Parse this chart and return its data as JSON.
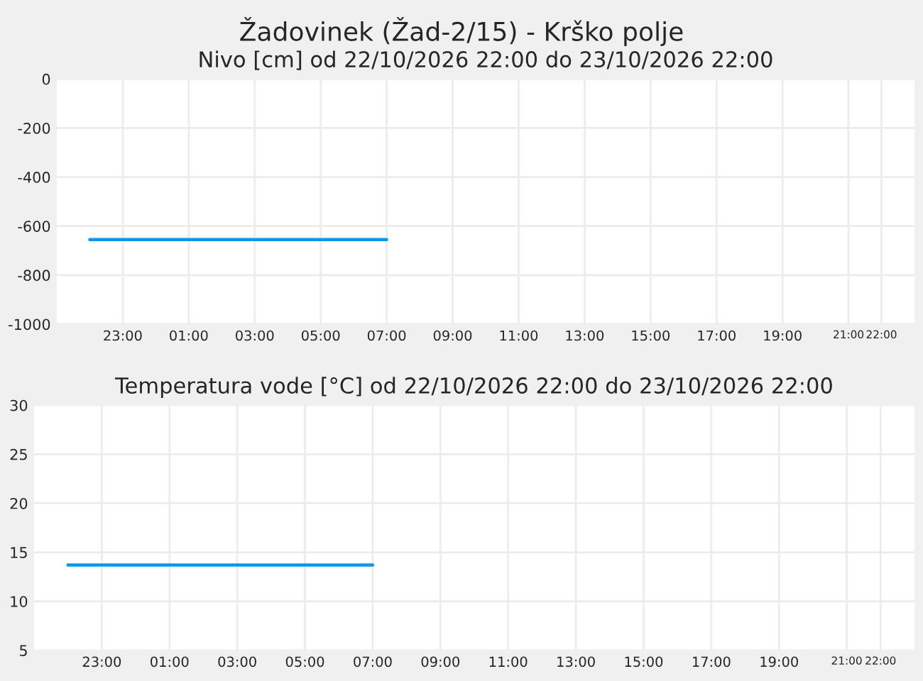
{
  "chart_data": [
    {
      "type": "line",
      "title": "Žadovinek (Žad-2/15) - Krško polje",
      "subtitle": "Nivo [cm] od 22/10/2026 22:00 do 23/10/2026 22:00",
      "series": [
        {
          "color": "#0a96f0",
          "x": [
            "2026-10-22T22:00",
            "2026-10-23T07:00"
          ],
          "values": [
            -655,
            -655
          ]
        }
      ],
      "xlim": [
        "2026-10-22T21:00",
        "2026-10-23T23:00"
      ],
      "xticks": [
        {
          "value": "2026-10-22T23:00",
          "label": "23:00"
        },
        {
          "value": "2026-10-23T01:00",
          "label": "01:00"
        },
        {
          "value": "2026-10-23T03:00",
          "label": "03:00"
        },
        {
          "value": "2026-10-23T05:00",
          "label": "05:00"
        },
        {
          "value": "2026-10-23T07:00",
          "label": "07:00"
        },
        {
          "value": "2026-10-23T09:00",
          "label": "09:00"
        },
        {
          "value": "2026-10-23T11:00",
          "label": "11:00"
        },
        {
          "value": "2026-10-23T13:00",
          "label": "13:00"
        },
        {
          "value": "2026-10-23T15:00",
          "label": "15:00"
        },
        {
          "value": "2026-10-23T17:00",
          "label": "17:00"
        },
        {
          "value": "2026-10-23T19:00",
          "label": "19:00"
        },
        {
          "value": "2026-10-23T21:00",
          "label": "21:00"
        },
        {
          "value": "2026-10-23T22:00",
          "label": "22:00"
        }
      ],
      "ylim": [
        -1000,
        0
      ],
      "yticks": [
        -1000,
        -800,
        -600,
        -400,
        -200,
        0
      ],
      "grid": true,
      "marker": "none",
      "line_style": "solid"
    },
    {
      "type": "line",
      "title": "Temperatura vode [°C] od 22/10/2026 22:00 do 23/10/2026 22:00",
      "series": [
        {
          "color": "#0a96f0",
          "x": [
            "2026-10-22T22:00",
            "2026-10-23T07:00"
          ],
          "values": [
            13.7,
            13.7
          ]
        }
      ],
      "xlim": [
        "2026-10-22T21:00",
        "2026-10-23T23:00"
      ],
      "xticks": [
        {
          "value": "2026-10-22T23:00",
          "label": "23:00"
        },
        {
          "value": "2026-10-23T01:00",
          "label": "01:00"
        },
        {
          "value": "2026-10-23T03:00",
          "label": "03:00"
        },
        {
          "value": "2026-10-23T05:00",
          "label": "05:00"
        },
        {
          "value": "2026-10-23T07:00",
          "label": "07:00"
        },
        {
          "value": "2026-10-23T09:00",
          "label": "09:00"
        },
        {
          "value": "2026-10-23T11:00",
          "label": "11:00"
        },
        {
          "value": "2026-10-23T13:00",
          "label": "13:00"
        },
        {
          "value": "2026-10-23T15:00",
          "label": "15:00"
        },
        {
          "value": "2026-10-23T17:00",
          "label": "17:00"
        },
        {
          "value": "2026-10-23T19:00",
          "label": "19:00"
        },
        {
          "value": "2026-10-23T21:00",
          "label": "21:00"
        },
        {
          "value": "2026-10-23T22:00",
          "label": "22:00"
        }
      ],
      "ylim": [
        5,
        30
      ],
      "yticks": [
        5,
        10,
        15,
        20,
        25,
        30
      ],
      "grid": true,
      "marker": "none",
      "line_style": "solid"
    }
  ]
}
